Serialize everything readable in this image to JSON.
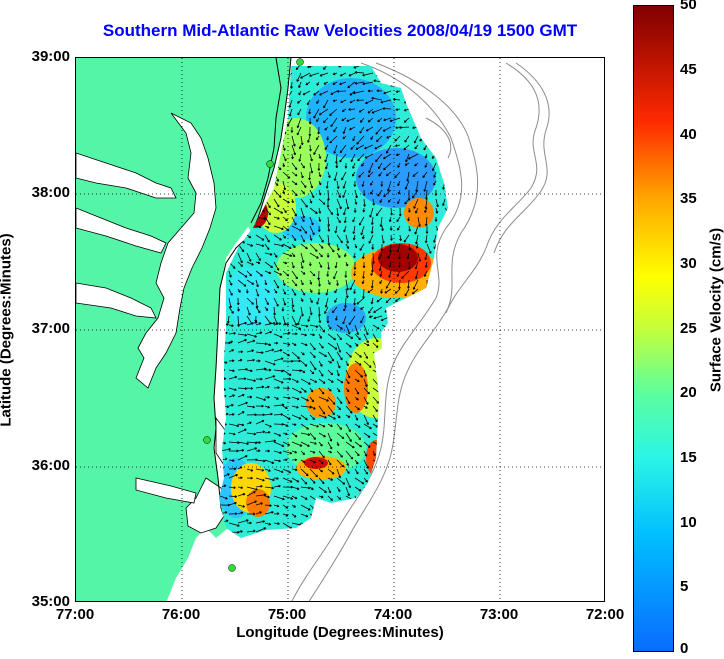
{
  "title": "Southern Mid-Atlantic Raw Velocities 2008/04/19 1500 GMT",
  "x_axis": {
    "label": "Longitude (Degrees:Minutes)",
    "ticks": [
      "77:00",
      "76:00",
      "75:00",
      "74:00",
      "73:00",
      "72:00"
    ]
  },
  "y_axis": {
    "label": "Latitude (Degrees:Minutes)",
    "ticks": [
      "39:00",
      "38:00",
      "37:00",
      "36:00",
      "35:00"
    ]
  },
  "colorbar": {
    "label": "Surface Velocity (cm/s)",
    "ticks": [
      "50",
      "45",
      "40",
      "35",
      "30",
      "25",
      "20",
      "15",
      "10",
      "5",
      "0"
    ],
    "range": [
      0,
      50
    ]
  },
  "colors": {
    "land": "#55f5a8",
    "title": "#0000ff",
    "station": "#2ddc3a"
  }
}
